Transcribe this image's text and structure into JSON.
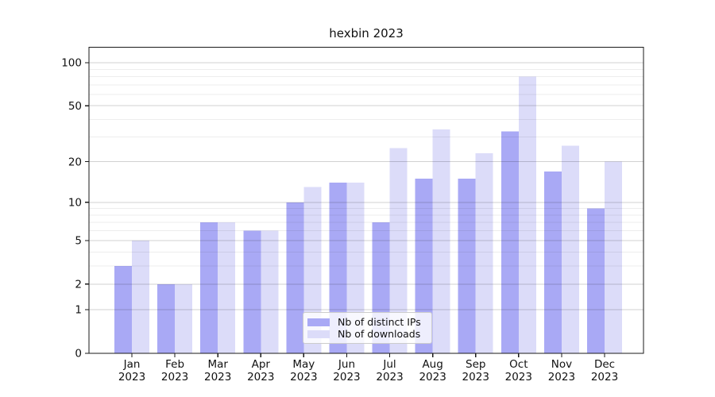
{
  "title": "hexbin 2023",
  "chart_data": {
    "type": "bar",
    "title": "hexbin 2023",
    "categories": [
      "Jan",
      "Feb",
      "Mar",
      "Apr",
      "May",
      "Jun",
      "Jul",
      "Aug",
      "Sep",
      "Oct",
      "Nov",
      "Dec"
    ],
    "category_year": "2023",
    "series": [
      {
        "name": "Nb of distinct IPs",
        "color": "#a9a9f5",
        "values": [
          3,
          2,
          7,
          6,
          10,
          14,
          7,
          15,
          15,
          33,
          17,
          9
        ]
      },
      {
        "name": "Nb of downloads",
        "color": "#dcdcf9",
        "values": [
          5,
          2,
          7,
          6,
          13,
          14,
          25,
          34,
          23,
          80,
          26,
          20
        ]
      }
    ],
    "yscale": "symlog ln(1+v)",
    "ylim": [
      0,
      128
    ],
    "ytick_values": [
      0,
      1,
      2,
      5,
      10,
      20,
      50,
      100
    ],
    "ytick_labels": [
      "0",
      "1",
      "2",
      "5",
      "10",
      "20",
      "50",
      "100"
    ],
    "major_grid_values": [
      1,
      2,
      5,
      10,
      20,
      50,
      100
    ],
    "minor_grid_values": [
      3,
      4,
      6,
      7,
      8,
      9,
      30,
      40,
      60,
      70,
      80,
      90
    ],
    "grid": true,
    "legend_position": "lower center (inside plot)"
  },
  "colors": {
    "series_ips": "#a9a9f5",
    "series_downloads": "#dcdcf9",
    "axis": "#1a1a1a",
    "major_grid": "rgba(0,0,0,0.18)",
    "minor_grid": "rgba(0,0,0,0.07)",
    "text": "#111111"
  }
}
